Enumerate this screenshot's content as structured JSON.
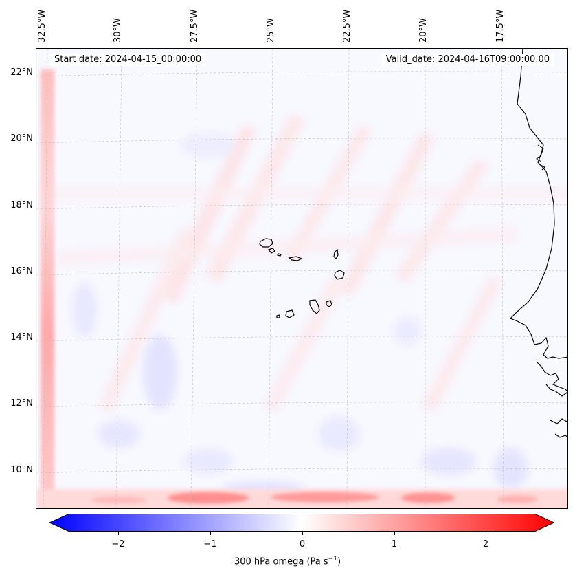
{
  "header": {
    "start_date": "Start date: 2024-04-15_00:00:00",
    "valid_date": "Valid_date: 2024-04-16T09:00:00.00"
  },
  "map": {
    "lon_labels": [
      "32.5°W",
      "30°W",
      "27.5°W",
      "25°W",
      "22.5°W",
      "20°W",
      "17.5°W"
    ],
    "lat_labels": [
      "22°N",
      "20°N",
      "18°N",
      "16°N",
      "14°N",
      "12°N",
      "10°N"
    ],
    "coastline_color": "#000000",
    "gridline_color": "#bbbbbb"
  },
  "colorbar": {
    "ticks": [
      "−2",
      "−1",
      "0",
      "1",
      "2"
    ],
    "label_text": "300 hPa omega (Pa s",
    "label_exp": "−1",
    "label_close": ")",
    "colors": {
      "min": "#0000ff",
      "mid": "#ffffff",
      "max": "#ff0000"
    }
  }
}
